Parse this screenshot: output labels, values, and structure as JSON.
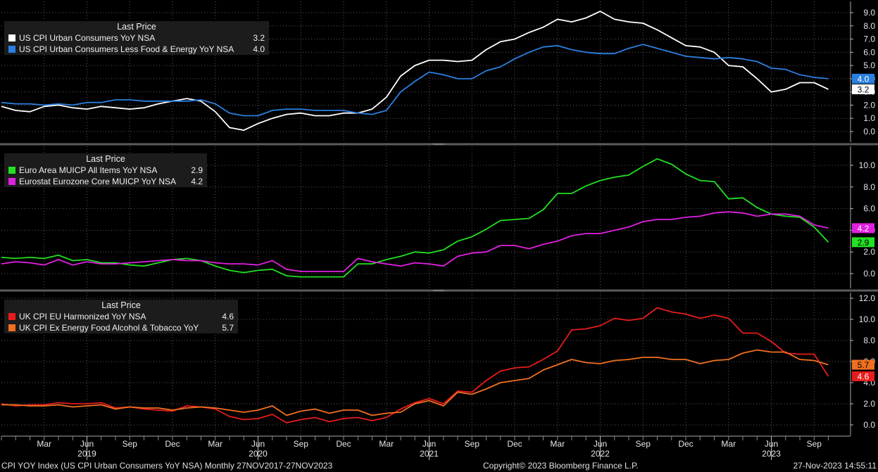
{
  "footer": {
    "left": "CPI YOY Index (US CPI Urban Consumers YoY NSA)  Monthly 27NOV2017-27NOV2023",
    "center": "Copyright© 2023 Bloomberg Finance L.P.",
    "right": "27-Nov-2023 14:55:11"
  },
  "x_axis": {
    "month_ticks": [
      "Mar",
      "Jun",
      "Sep",
      "Dec",
      "Mar",
      "Jun",
      "Sep",
      "Dec",
      "Mar",
      "Jun",
      "Sep",
      "Dec",
      "Mar",
      "Jun",
      "Sep",
      "Dec",
      "Mar",
      "Jun",
      "Sep"
    ],
    "year_labels": [
      "2019",
      "2020",
      "2021",
      "2022",
      "2023"
    ]
  },
  "chart_data": [
    {
      "type": "line",
      "legend_title": "Last Price",
      "legend_placement": "top-left",
      "ylim": [
        -0.5,
        9.5
      ],
      "yticks": [
        "0.0",
        "1.0",
        "2.0",
        "3.0",
        "4.0",
        "5.0",
        "6.0",
        "7.0",
        "8.0",
        "9.0"
      ],
      "series": [
        {
          "name": "US CPI Urban Consumers YoY NSA",
          "last": "3.2",
          "color": "#ffffff",
          "values": [
            1.9,
            1.6,
            1.5,
            1.9,
            2.0,
            1.8,
            1.7,
            1.9,
            1.8,
            1.7,
            1.8,
            2.1,
            2.3,
            2.5,
            2.3,
            1.5,
            0.3,
            0.1,
            0.6,
            1.0,
            1.3,
            1.4,
            1.2,
            1.2,
            1.4,
            1.4,
            1.7,
            2.6,
            4.2,
            5.0,
            5.4,
            5.4,
            5.3,
            5.4,
            6.2,
            6.8,
            7.0,
            7.5,
            7.9,
            8.5,
            8.3,
            8.6,
            9.1,
            8.5,
            8.3,
            8.2,
            7.7,
            7.1,
            6.5,
            6.4,
            6.0,
            5.0,
            4.9,
            4.0,
            3.0,
            3.2,
            3.7,
            3.7,
            3.2
          ]
        },
        {
          "name": "US CPI Urban Consumers Less Food & Energy YoY NSA",
          "last": "4.0",
          "color": "#2b7fe0",
          "values": [
            2.2,
            2.1,
            2.1,
            2.0,
            2.1,
            2.0,
            2.2,
            2.2,
            2.4,
            2.4,
            2.3,
            2.3,
            2.3,
            2.3,
            2.4,
            2.1,
            1.4,
            1.2,
            1.2,
            1.6,
            1.7,
            1.7,
            1.6,
            1.6,
            1.6,
            1.4,
            1.3,
            1.6,
            3.0,
            3.8,
            4.5,
            4.3,
            4.0,
            4.0,
            4.6,
            4.9,
            5.5,
            6.0,
            6.4,
            6.5,
            6.2,
            6.0,
            5.9,
            5.9,
            6.3,
            6.6,
            6.3,
            6.0,
            5.7,
            5.6,
            5.5,
            5.6,
            5.5,
            5.3,
            4.8,
            4.7,
            4.3,
            4.1,
            4.0
          ]
        }
      ]
    },
    {
      "type": "line",
      "legend_title": "Last Price",
      "legend_placement": "top-left",
      "ylim": [
        -1.8,
        11.3
      ],
      "yticks": [
        "0.0",
        "2.0",
        "4.0",
        "6.0",
        "8.0",
        "10.0"
      ],
      "series": [
        {
          "name": "Euro Area MUICP All Items YoY NSA",
          "last": "2.9",
          "color": "#22e022",
          "values": [
            1.5,
            1.4,
            1.5,
            1.4,
            1.7,
            1.2,
            1.3,
            1.0,
            1.0,
            0.8,
            0.7,
            1.0,
            1.3,
            1.4,
            1.2,
            0.7,
            0.3,
            0.1,
            0.3,
            0.4,
            -0.2,
            -0.3,
            -0.3,
            -0.3,
            -0.3,
            0.9,
            0.9,
            1.3,
            1.6,
            2.0,
            1.9,
            2.2,
            3.0,
            3.4,
            4.1,
            4.9,
            5.0,
            5.1,
            5.9,
            7.4,
            7.4,
            8.1,
            8.6,
            8.9,
            9.1,
            9.9,
            10.6,
            10.1,
            9.2,
            8.6,
            8.5,
            6.9,
            7.0,
            6.1,
            5.5,
            5.3,
            5.2,
            4.3,
            2.9
          ]
        },
        {
          "name": "Eurostat Eurozone Core MUICP YoY NSA",
          "last": "4.2",
          "color": "#e020e0",
          "values": [
            0.9,
            1.1,
            1.0,
            0.8,
            1.3,
            0.8,
            1.1,
            0.9,
            0.9,
            1.0,
            1.1,
            1.2,
            1.3,
            1.2,
            1.2,
            1.0,
            0.9,
            0.9,
            0.8,
            1.2,
            0.4,
            0.2,
            0.2,
            0.2,
            0.2,
            1.4,
            1.1,
            0.9,
            0.7,
            1.0,
            0.9,
            0.7,
            1.6,
            1.9,
            2.0,
            2.6,
            2.6,
            2.3,
            2.7,
            3.0,
            3.5,
            3.7,
            3.7,
            4.0,
            4.3,
            4.8,
            5.0,
            5.0,
            5.2,
            5.3,
            5.6,
            5.7,
            5.6,
            5.3,
            5.5,
            5.5,
            5.3,
            4.5,
            4.2
          ]
        }
      ]
    },
    {
      "type": "line",
      "legend_title": "Last Price",
      "legend_placement": "top-left",
      "ylim": [
        -1.0,
        12.0
      ],
      "yticks": [
        "0.0",
        "2.0",
        "4.0",
        "6.0",
        "8.0",
        "10.0",
        "12.0"
      ],
      "series": [
        {
          "name": "UK CPI EU Harmonized YoY NSA",
          "last": "4.6",
          "color": "#e81c1c",
          "values": [
            2.0,
            1.8,
            1.9,
            1.9,
            2.1,
            2.0,
            2.0,
            2.1,
            1.6,
            1.7,
            1.5,
            1.4,
            1.3,
            1.8,
            1.7,
            1.5,
            0.8,
            0.5,
            0.6,
            1.0,
            0.2,
            0.5,
            0.7,
            0.3,
            0.6,
            0.7,
            0.4,
            0.7,
            1.5,
            2.1,
            2.5,
            2.0,
            3.2,
            3.1,
            4.2,
            5.1,
            5.4,
            5.5,
            6.2,
            7.0,
            9.0,
            9.1,
            9.4,
            10.1,
            9.9,
            10.1,
            11.1,
            10.7,
            10.5,
            10.1,
            10.4,
            10.1,
            8.7,
            8.7,
            7.9,
            6.8,
            6.7,
            6.7,
            4.6
          ]
        },
        {
          "name": "UK CPI Ex Energy Food Alcohol & Tobacco YoY",
          "last": "5.7",
          "color": "#f07020",
          "values": [
            1.9,
            1.9,
            1.8,
            1.8,
            1.9,
            1.7,
            1.8,
            1.9,
            1.5,
            1.7,
            1.6,
            1.6,
            1.4,
            1.6,
            1.7,
            1.6,
            1.4,
            1.2,
            1.4,
            1.8,
            0.9,
            1.3,
            1.5,
            1.1,
            1.4,
            1.4,
            0.9,
            1.1,
            1.2,
            2.0,
            2.3,
            1.8,
            3.1,
            2.9,
            3.4,
            4.0,
            4.2,
            4.4,
            5.2,
            5.7,
            6.2,
            5.9,
            5.8,
            6.1,
            6.2,
            6.4,
            6.4,
            6.2,
            6.2,
            5.8,
            6.1,
            6.2,
            6.8,
            7.1,
            6.9,
            6.9,
            6.2,
            6.1,
            5.7
          ]
        }
      ]
    }
  ]
}
